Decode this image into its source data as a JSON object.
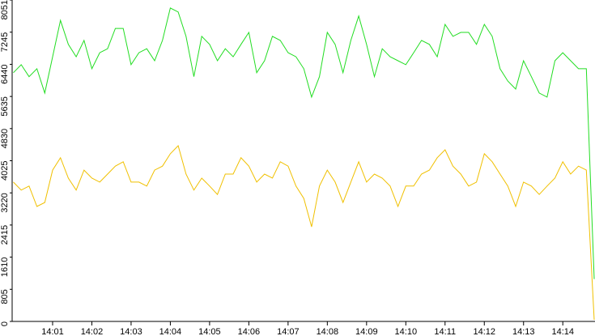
{
  "chart_data": {
    "type": "line",
    "categories": [
      null,
      null,
      null,
      null,
      null,
      "14:01",
      null,
      null,
      null,
      null,
      "14:02",
      null,
      null,
      null,
      null,
      "14:03",
      null,
      null,
      null,
      null,
      "14:04",
      null,
      null,
      null,
      null,
      "14:05",
      null,
      null,
      null,
      null,
      "14:06",
      null,
      null,
      null,
      null,
      "14:07",
      null,
      null,
      null,
      null,
      "14:08",
      null,
      null,
      null,
      null,
      "14:09",
      null,
      null,
      null,
      null,
      "14:10",
      null,
      null,
      null,
      null,
      "14:11",
      null,
      null,
      null,
      null,
      "14:12",
      null,
      null,
      null,
      null,
      "14:13",
      null,
      null,
      null,
      null,
      "14:14",
      null,
      null,
      null,
      null
    ],
    "series": [
      {
        "color": "#22dd22",
        "values": [
          6230,
          6430,
          6130,
          6330,
          5720,
          6630,
          7540,
          6940,
          6630,
          7040,
          6330,
          6730,
          6830,
          7340,
          7340,
          6430,
          6730,
          6830,
          6530,
          7040,
          7850,
          7750,
          7140,
          6130,
          7140,
          6940,
          6530,
          6830,
          6630,
          6940,
          7240,
          6230,
          6530,
          7140,
          7040,
          6730,
          6630,
          6330,
          5620,
          6130,
          7240,
          6940,
          6230,
          7040,
          7650,
          6940,
          6130,
          6830,
          6630,
          6530,
          6430,
          6730,
          7040,
          6940,
          6630,
          7440,
          7140,
          7240,
          7240,
          6940,
          7440,
          7140,
          6330,
          6020,
          5820,
          6530,
          6130,
          5720,
          5620,
          6530,
          6730,
          6530,
          6330,
          6330,
          1060
        ]
      },
      {
        "color": "#f0c000",
        "values": [
          3490,
          3290,
          3390,
          2880,
          2980,
          3790,
          4100,
          3590,
          3290,
          3790,
          3590,
          3490,
          3690,
          3890,
          4000,
          3490,
          3490,
          3390,
          3790,
          3890,
          4200,
          4400,
          3690,
          3290,
          3590,
          3390,
          3180,
          3690,
          3690,
          4100,
          3890,
          3490,
          3690,
          3590,
          4000,
          3890,
          3390,
          3080,
          2370,
          3390,
          3790,
          3490,
          2980,
          3490,
          4000,
          3490,
          3690,
          3590,
          3390,
          2880,
          3390,
          3390,
          3690,
          3790,
          4100,
          4300,
          3890,
          3690,
          3390,
          3490,
          4200,
          4000,
          3690,
          3390,
          2880,
          3490,
          3390,
          3180,
          3390,
          3590,
          4000,
          3690,
          3890,
          3790,
          40
        ]
      }
    ],
    "ylim": [
      0,
      8051
    ],
    "yticks": [
      0,
      805,
      1610,
      2415,
      3220,
      4025,
      4830,
      5635,
      6440,
      7245,
      8051
    ]
  }
}
